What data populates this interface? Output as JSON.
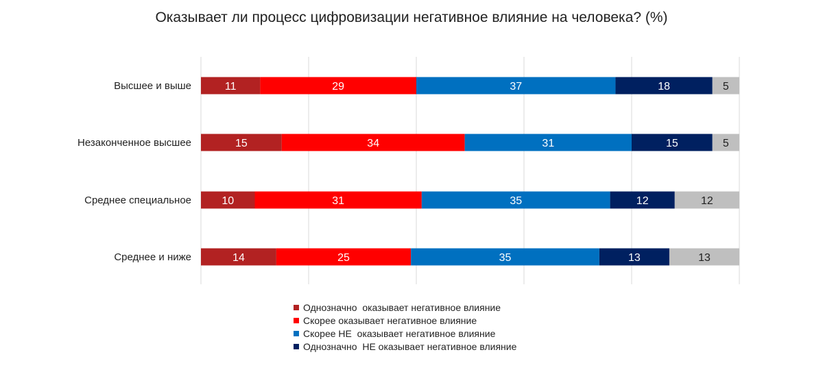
{
  "chart_data": {
    "type": "bar",
    "orientation": "horizontal",
    "stacked": true,
    "title": "Оказывает ли процесс цифровизации негативное влияние на человека? (%)",
    "categories": [
      "Высшее и выше",
      "Незаконченное высшее",
      "Среднее специальное",
      "Среднее и ниже"
    ],
    "series": [
      {
        "name": "Однозначно  оказывает негативное влияние",
        "color": "#b22222",
        "label_color": "#ffffff",
        "values": [
          11,
          15,
          10,
          14
        ]
      },
      {
        "name": "Скорее оказывает негативное влияние",
        "color": "#ff0000",
        "label_color": "#ffffff",
        "values": [
          29,
          34,
          31,
          25
        ]
      },
      {
        "name": "Скорее НЕ  оказывает негативное влияние",
        "color": "#0070c0",
        "label_color": "#ffffff",
        "values": [
          37,
          31,
          35,
          35
        ]
      },
      {
        "name": "Однозначно  НЕ оказывает негативное влияние",
        "color": "#002060",
        "label_color": "#ffffff",
        "values": [
          18,
          15,
          12,
          13
        ]
      },
      {
        "name": "",
        "color": "#bfbfbf",
        "label_color": "#1f1f1f",
        "values": [
          5,
          5,
          12,
          13
        ]
      }
    ],
    "xlim": [
      0,
      100
    ],
    "grid": true,
    "legend": "bottom"
  }
}
